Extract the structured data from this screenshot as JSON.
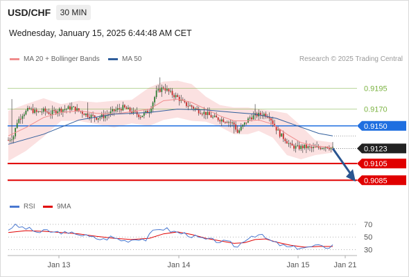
{
  "header": {
    "symbol": "USD/CHF",
    "timeframe": "30 MIN",
    "datetime": "Wednesday, January 15, 2025 6:44:48 AM CET",
    "credit": "Research © 2025 Trading Central"
  },
  "chart_data": [
    {
      "type": "candlestick",
      "legend": [
        {
          "name": "MA 20 + Bollinger Bands",
          "color": "#f08c8c"
        },
        {
          "name": "MA 50",
          "color": "#2f5d9b"
        }
      ],
      "ylim": [
        0.9067,
        0.9221
      ],
      "levels": [
        {
          "value": 0.9195,
          "label": "0.9195",
          "kind": "resistance",
          "color": "#7cb342"
        },
        {
          "value": 0.917,
          "label": "0.9170",
          "kind": "resistance",
          "color": "#7cb342"
        },
        {
          "value": 0.915,
          "label": "0.9150",
          "kind": "pivot",
          "color": "#1f6fe0"
        },
        {
          "value": 0.9123,
          "label": "0.9123",
          "kind": "last",
          "color": "#222222"
        },
        {
          "value": 0.9105,
          "label": "0.9105",
          "kind": "support",
          "color": "#e00000"
        },
        {
          "value": 0.9085,
          "label": "0.9085",
          "kind": "support",
          "color": "#e00000"
        }
      ],
      "x_ticks": [
        "Jan 13",
        "Jan 14",
        "Jan 15",
        "Jan 21"
      ],
      "last_price": 0.9123,
      "projection": {
        "from": 0.9123,
        "to": 0.9085,
        "direction": "down"
      },
      "close_path": [
        [
          0,
          0.9133
        ],
        [
          3,
          0.9138
        ],
        [
          5,
          0.9155
        ],
        [
          8,
          0.9164
        ],
        [
          12,
          0.917
        ],
        [
          16,
          0.9166
        ],
        [
          20,
          0.9168
        ],
        [
          24,
          0.9165
        ],
        [
          28,
          0.9169
        ],
        [
          32,
          0.917
        ],
        [
          36,
          0.9172
        ],
        [
          40,
          0.9168
        ],
        [
          45,
          0.9163
        ],
        [
          50,
          0.916
        ],
        [
          55,
          0.9162
        ],
        [
          60,
          0.9168
        ],
        [
          65,
          0.9172
        ],
        [
          70,
          0.9167
        ],
        [
          75,
          0.9162
        ],
        [
          80,
          0.9168
        ],
        [
          84,
          0.919
        ],
        [
          88,
          0.9196
        ],
        [
          92,
          0.9189
        ],
        [
          96,
          0.9184
        ],
        [
          100,
          0.9176
        ],
        [
          104,
          0.9173
        ],
        [
          108,
          0.9168
        ],
        [
          112,
          0.9165
        ],
        [
          116,
          0.916
        ],
        [
          120,
          0.9158
        ],
        [
          124,
          0.9156
        ],
        [
          128,
          0.9152
        ],
        [
          130,
          0.9142
        ],
        [
          133,
          0.915
        ],
        [
          137,
          0.916
        ],
        [
          141,
          0.9163
        ],
        [
          145,
          0.9164
        ],
        [
          148,
          0.9162
        ],
        [
          151,
          0.915
        ],
        [
          154,
          0.914
        ],
        [
          157,
          0.9134
        ],
        [
          160,
          0.9126
        ],
        [
          164,
          0.9124
        ],
        [
          168,
          0.9125
        ],
        [
          172,
          0.9123
        ],
        [
          176,
          0.9124
        ],
        [
          180,
          0.9126
        ],
        [
          184,
          0.9123
        ]
      ],
      "ma20": [
        [
          0,
          0.9138
        ],
        [
          10,
          0.9148
        ],
        [
          20,
          0.916
        ],
        [
          30,
          0.9166
        ],
        [
          40,
          0.9168
        ],
        [
          50,
          0.9165
        ],
        [
          60,
          0.9164
        ],
        [
          70,
          0.9167
        ],
        [
          80,
          0.917
        ],
        [
          88,
          0.918
        ],
        [
          96,
          0.9182
        ],
        [
          104,
          0.9178
        ],
        [
          112,
          0.917
        ],
        [
          120,
          0.9162
        ],
        [
          128,
          0.9156
        ],
        [
          136,
          0.9156
        ],
        [
          142,
          0.9157
        ],
        [
          150,
          0.9152
        ],
        [
          158,
          0.914
        ],
        [
          166,
          0.913
        ],
        [
          174,
          0.9126
        ],
        [
          184,
          0.9124
        ]
      ],
      "ma50": [
        [
          0,
          0.9128
        ],
        [
          20,
          0.914
        ],
        [
          40,
          0.9157
        ],
        [
          60,
          0.9164
        ],
        [
          80,
          0.9166
        ],
        [
          96,
          0.917
        ],
        [
          112,
          0.9169
        ],
        [
          128,
          0.9166
        ],
        [
          140,
          0.9164
        ],
        [
          152,
          0.9159
        ],
        [
          164,
          0.915
        ],
        [
          176,
          0.9141
        ],
        [
          184,
          0.9138
        ]
      ],
      "bb_upper": [
        [
          0,
          0.9168
        ],
        [
          10,
          0.9176
        ],
        [
          20,
          0.9183
        ],
        [
          30,
          0.9176
        ],
        [
          40,
          0.918
        ],
        [
          50,
          0.9178
        ],
        [
          60,
          0.918
        ],
        [
          70,
          0.9181
        ],
        [
          80,
          0.9196
        ],
        [
          88,
          0.9203
        ],
        [
          96,
          0.9204
        ],
        [
          104,
          0.92
        ],
        [
          112,
          0.9185
        ],
        [
          120,
          0.9175
        ],
        [
          128,
          0.9172
        ],
        [
          136,
          0.9172
        ],
        [
          142,
          0.917
        ],
        [
          150,
          0.9168
        ],
        [
          158,
          0.9165
        ],
        [
          166,
          0.915
        ],
        [
          174,
          0.9133
        ],
        [
          184,
          0.913
        ]
      ],
      "bb_lower": [
        [
          0,
          0.9108
        ],
        [
          10,
          0.912
        ],
        [
          20,
          0.9137
        ],
        [
          30,
          0.9156
        ],
        [
          40,
          0.9156
        ],
        [
          50,
          0.9152
        ],
        [
          60,
          0.9148
        ],
        [
          70,
          0.9153
        ],
        [
          80,
          0.915
        ],
        [
          88,
          0.9157
        ],
        [
          96,
          0.916
        ],
        [
          104,
          0.9156
        ],
        [
          112,
          0.9155
        ],
        [
          120,
          0.9149
        ],
        [
          128,
          0.914
        ],
        [
          136,
          0.914
        ],
        [
          142,
          0.9144
        ],
        [
          150,
          0.9136
        ],
        [
          158,
          0.9115
        ],
        [
          166,
          0.911
        ],
        [
          174,
          0.9115
        ],
        [
          184,
          0.9118
        ]
      ]
    },
    {
      "type": "line",
      "legend": [
        {
          "name": "RSI",
          "color": "#4a78d0"
        },
        {
          "name": "9MA",
          "color": "#e00000"
        }
      ],
      "ylim": [
        24,
        82
      ],
      "y_ticks": [
        70,
        50,
        30
      ],
      "rsi": [
        [
          0,
          62
        ],
        [
          3,
          68
        ],
        [
          6,
          66
        ],
        [
          10,
          64
        ],
        [
          14,
          60
        ],
        [
          18,
          57
        ],
        [
          22,
          60
        ],
        [
          26,
          57
        ],
        [
          30,
          58
        ],
        [
          34,
          54
        ],
        [
          38,
          57
        ],
        [
          42,
          53
        ],
        [
          46,
          50
        ],
        [
          50,
          48
        ],
        [
          54,
          46
        ],
        [
          58,
          50
        ],
        [
          62,
          47
        ],
        [
          66,
          44
        ],
        [
          70,
          46
        ],
        [
          74,
          48
        ],
        [
          78,
          46
        ],
        [
          82,
          58
        ],
        [
          86,
          64
        ],
        [
          90,
          62
        ],
        [
          94,
          58
        ],
        [
          98,
          56
        ],
        [
          102,
          54
        ],
        [
          106,
          50
        ],
        [
          110,
          47
        ],
        [
          114,
          45
        ],
        [
          118,
          44
        ],
        [
          122,
          42
        ],
        [
          126,
          40
        ],
        [
          130,
          34
        ],
        [
          134,
          46
        ],
        [
          138,
          52
        ],
        [
          142,
          54
        ],
        [
          146,
          48
        ],
        [
          150,
          42
        ],
        [
          154,
          38
        ],
        [
          158,
          34
        ],
        [
          162,
          33
        ],
        [
          166,
          34
        ],
        [
          170,
          33
        ],
        [
          174,
          36
        ],
        [
          178,
          34
        ],
        [
          182,
          35
        ],
        [
          184,
          37
        ]
      ],
      "ma9": [
        [
          0,
          57
        ],
        [
          10,
          60
        ],
        [
          20,
          59
        ],
        [
          30,
          57
        ],
        [
          40,
          55
        ],
        [
          50,
          51
        ],
        [
          60,
          48
        ],
        [
          70,
          46
        ],
        [
          80,
          48
        ],
        [
          88,
          55
        ],
        [
          96,
          58
        ],
        [
          104,
          54
        ],
        [
          112,
          48
        ],
        [
          120,
          44
        ],
        [
          128,
          40
        ],
        [
          134,
          41
        ],
        [
          140,
          46
        ],
        [
          146,
          47
        ],
        [
          152,
          42
        ],
        [
          160,
          37
        ],
        [
          168,
          34
        ],
        [
          176,
          35
        ],
        [
          184,
          35
        ]
      ]
    }
  ]
}
